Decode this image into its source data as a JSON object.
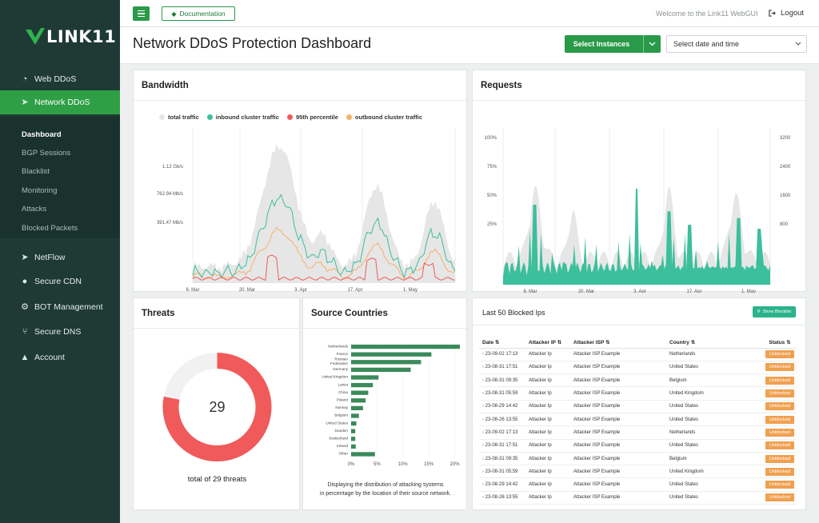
{
  "app": {
    "logo_text": "LINK11"
  },
  "sidebar": {
    "items": [
      {
        "label": "Web DDoS",
        "icon": "gauge-icon"
      },
      {
        "label": "Network DDoS",
        "icon": "rocket-icon",
        "active": true
      },
      {
        "label": "NetFlow",
        "icon": "rocket-icon"
      },
      {
        "label": "Secure CDN",
        "icon": "globe-icon"
      },
      {
        "label": "BOT Management",
        "icon": "robot-icon"
      },
      {
        "label": "Secure DNS",
        "icon": "dns-icon"
      },
      {
        "label": "Account",
        "icon": "user-icon"
      }
    ],
    "sub_items": [
      {
        "label": "Dashboard",
        "active": true
      },
      {
        "label": "BGP Sessions"
      },
      {
        "label": "Blacklist"
      },
      {
        "label": "Monitoring"
      },
      {
        "label": "Attacks"
      },
      {
        "label": "Blocked Packets"
      }
    ]
  },
  "topbar": {
    "doc_label": "Documentation",
    "welcome": "Welcome to the Link11 WebGUI",
    "logout": "Logout"
  },
  "header": {
    "title": "Network DDoS Protection Dashboard",
    "select_instances": "Select Instances",
    "date_placeholder": "Select date and time"
  },
  "colors": {
    "brand": "#2a9a48",
    "sidebar": "#1f3a35",
    "teal": "#3cbf9c",
    "red": "#f05a5a",
    "orange": "#f5b06a",
    "gray": "#e6e6e6",
    "bar": "#3a8a5a"
  },
  "bandwidth": {
    "title": "Bandwidth",
    "legend": [
      {
        "label": "total traffic",
        "color": "#e6e6e6"
      },
      {
        "label": "inbound cluster traffic",
        "color": "#3cbf9c"
      },
      {
        "label": "95th percentile",
        "color": "#f05a5a"
      },
      {
        "label": "outbound cluster traffic",
        "color": "#f5b06a"
      }
    ],
    "y_ticks": [
      "1.12 Gb/s",
      "762.94 Mb/s",
      "391.47 Mb/s"
    ],
    "x_ticks": [
      "6. Mar",
      "20. Mar",
      "3. Apr",
      "17. Apr",
      "1. May"
    ]
  },
  "requests": {
    "title": "Requests",
    "y_left": [
      "100%",
      "75%",
      "50%",
      "25%"
    ],
    "y_right": [
      "3200",
      "2400",
      "1600",
      "800"
    ],
    "x_ticks": [
      "6. Mar",
      "20. Mar",
      "3. Apr",
      "17. Apr",
      "1. May"
    ]
  },
  "threats": {
    "title": "Threats",
    "count": "29",
    "caption": "total of 29 threats",
    "fraction": 0.78
  },
  "countries": {
    "title": "Source Countries",
    "caption_line1": "Displaying the distribution of attacking systems",
    "caption_line2": "in percentage by the location of their source network.",
    "x_ticks": [
      "0%",
      "5%",
      "10%",
      "15%",
      "20%"
    ]
  },
  "chart_data": {
    "type": "bar",
    "orientation": "horizontal",
    "categories": [
      "Netherlands",
      "France",
      "Russian Federation",
      "Germany",
      "United Kingdom",
      "Latvia",
      "China",
      "Poland",
      "Norway",
      "Belgium",
      "United States",
      "Sweden",
      "Switzerland",
      "Ireland",
      "Other"
    ],
    "category_lines": [
      [
        "Netherlands"
      ],
      [
        "France"
      ],
      [
        "Russian",
        "Federation"
      ],
      [
        "Germany"
      ],
      [
        "United Kingdom"
      ],
      [
        "Latvia"
      ],
      [
        "China"
      ],
      [
        "Poland"
      ],
      [
        "Norway"
      ],
      [
        "Belgium"
      ],
      [
        "United States"
      ],
      [
        "Sweden"
      ],
      [
        "Switzerland"
      ],
      [
        "Ireland"
      ],
      [
        "Other"
      ]
    ],
    "values": [
      21,
      15.5,
      13.5,
      11.5,
      5.3,
      4.2,
      3.3,
      2.8,
      2.3,
      1.5,
      1.0,
      0.8,
      0.8,
      0.9,
      4.6
    ],
    "xlim": [
      0,
      21
    ]
  },
  "blocked": {
    "title": "Last 50 Blocked Ips",
    "show_blocklist": "Show Blocklist",
    "headers": [
      "Date",
      "Attacker IP",
      "Attacker ISP",
      "Country",
      "Status"
    ],
    "rows": [
      [
        "23-09-02 17:13",
        "Attacker Ip",
        "Attacker ISP Example",
        "Netherlands",
        "Unblocked"
      ],
      [
        "23-08-31 17:51",
        "Attacker Ip",
        "Attacker ISP Example",
        "United States",
        "Unblocked"
      ],
      [
        "23-08-31 09:35",
        "Attacker Ip",
        "Attacker ISP Example",
        "Belgium",
        "Unblocked"
      ],
      [
        "23-08-31 05:59",
        "Attacker Ip",
        "Attacker ISP Example",
        "United Kingdom",
        "Unblocked"
      ],
      [
        "23-08-29 14:42",
        "Attacker Ip",
        "Attacker ISP Example",
        "United States",
        "Unblocked"
      ],
      [
        "23-08-26 13:55",
        "Attacker Ip",
        "Attacker ISP Example",
        "United States",
        "Unblocked"
      ],
      [
        "23-09-02 17:13",
        "Attacker Ip",
        "Attacker ISP Example",
        "Netherlands",
        "Unblocked"
      ],
      [
        "23-08-31 17:51",
        "Attacker Ip",
        "Attacker ISP Example",
        "United States",
        "Unblocked"
      ],
      [
        "23-08-31 09:35",
        "Attacker Ip",
        "Attacker ISP Example",
        "Belgium",
        "Unblocked"
      ],
      [
        "23-08-31 05:59",
        "Attacker Ip",
        "Attacker ISP Example",
        "United Kingdom",
        "Unblocked"
      ],
      [
        "23-08-29 14:42",
        "Attacker Ip",
        "Attacker ISP Example",
        "United States",
        "Unblocked"
      ],
      [
        "23-08-26 13:55",
        "Attacker Ip",
        "Attacker ISP Example",
        "United States",
        "Unblocked"
      ]
    ]
  }
}
